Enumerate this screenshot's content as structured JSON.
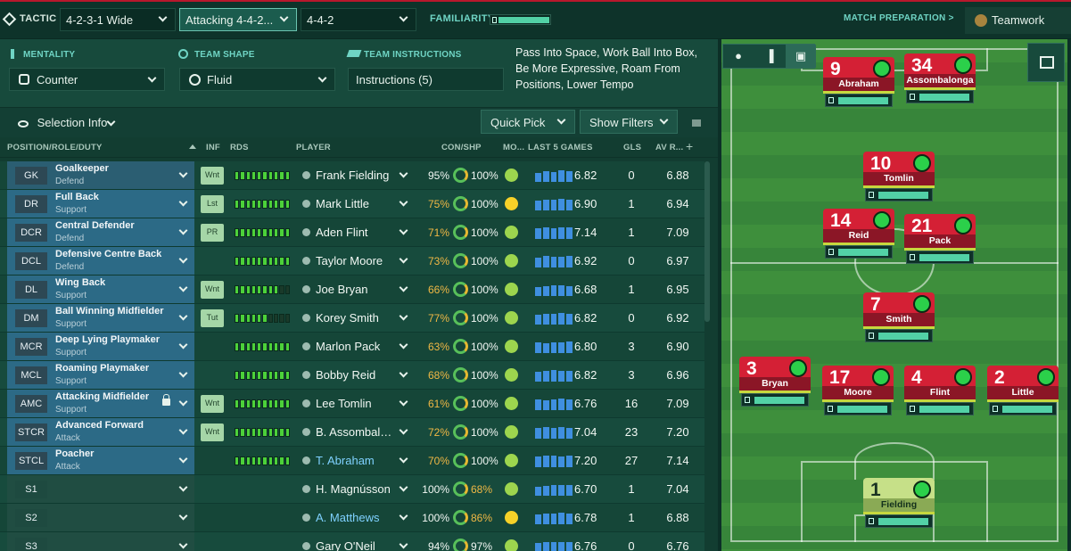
{
  "topbar": {
    "tactic_label": "TACTIC",
    "tactics": [
      "4-2-3-1 Wide",
      "Attacking 4-4-2...",
      "4-4-2"
    ],
    "familiarity_label": "FAMILIARITY",
    "match_prep": "MATCH PREPARATION >",
    "teamwork": "Teamwork"
  },
  "settings": {
    "mentality_label": "MENTALITY",
    "mentality_value": "Counter",
    "shape_label": "TEAM SHAPE",
    "shape_value": "Fluid",
    "instructions_label": "TEAM INSTRUCTIONS",
    "instructions_value": "Instructions (5)",
    "instructions_text": "Pass Into Space, Work Ball Into Box, Be More Expressive, Roam From Positions, Lower Tempo"
  },
  "selection": {
    "info": "Selection Info",
    "quick_pick": "Quick Pick",
    "show_filters": "Show Filters"
  },
  "columns": {
    "position": "POSITION/ROLE/DUTY",
    "inf": "INF",
    "rds": "RDS",
    "player": "PLAYER",
    "conshp": "CON/SHP",
    "mo": "MO...",
    "last5": "LAST 5 GAMES",
    "gls": "GLS",
    "avr": "AV R..."
  },
  "rows": [
    {
      "pos": "GK",
      "role": "Goalkeeper",
      "duty": "Defend",
      "inf": "Wnt",
      "rds": 10,
      "player": "Frank Fielding",
      "con": "95%",
      "shp": "100%",
      "avg": "6.82",
      "gls": "0",
      "avr": "6.88",
      "accent": "g"
    },
    {
      "pos": "DR",
      "role": "Full Back",
      "duty": "Support",
      "inf": "Lst",
      "rds": 10,
      "player": "Mark Little",
      "con": "75%",
      "shp": "100%",
      "avg": "6.90",
      "gls": "1",
      "avr": "6.94",
      "accent": "g"
    },
    {
      "pos": "DCR",
      "role": "Central Defender",
      "duty": "Defend",
      "inf": "PR",
      "rds": 10,
      "player": "Aden Flint",
      "con": "71%",
      "shp": "100%",
      "avg": "7.14",
      "gls": "1",
      "avr": "7.09",
      "accent": "g"
    },
    {
      "pos": "DCL",
      "role": "Defensive Centre Back",
      "duty": "Defend",
      "inf": "",
      "rds": 10,
      "player": "Taylor Moore",
      "con": "73%",
      "shp": "100%",
      "avg": "6.92",
      "gls": "0",
      "avr": "6.97",
      "accent": "g"
    },
    {
      "pos": "DL",
      "role": "Wing Back",
      "duty": "Support",
      "inf": "Wnt",
      "rds": 8,
      "player": "Joe Bryan",
      "con": "66%",
      "shp": "100%",
      "avg": "6.68",
      "gls": "1",
      "avr": "6.95",
      "accent": "g"
    },
    {
      "pos": "DM",
      "role": "Ball Winning Midfielder",
      "duty": "Support",
      "inf": "Tut",
      "rds": 6,
      "player": "Korey Smith",
      "con": "77%",
      "shp": "100%",
      "avg": "6.82",
      "gls": "0",
      "avr": "6.92",
      "accent": "y"
    },
    {
      "pos": "MCR",
      "role": "Deep Lying Playmaker",
      "duty": "Support",
      "inf": "",
      "rds": 10,
      "player": "Marlon Pack",
      "con": "63%",
      "shp": "100%",
      "avg": "6.80",
      "gls": "3",
      "avr": "6.90",
      "accent": "g"
    },
    {
      "pos": "MCL",
      "role": "Roaming Playmaker",
      "duty": "Support",
      "inf": "",
      "rds": 10,
      "player": "Bobby Reid",
      "con": "68%",
      "shp": "100%",
      "avg": "6.82",
      "gls": "3",
      "avr": "6.96",
      "accent": "g"
    },
    {
      "pos": "AMC",
      "role": "Attacking Midfielder",
      "duty": "Support",
      "inf": "Wnt",
      "rds": 10,
      "player": "Lee Tomlin",
      "con": "61%",
      "shp": "100%",
      "avg": "6.76",
      "gls": "16",
      "avr": "7.09",
      "accent": "g",
      "lock": true
    },
    {
      "pos": "STCR",
      "role": "Advanced Forward",
      "duty": "Attack",
      "inf": "Wnt",
      "rds": 10,
      "player": "B. Assombalo...",
      "con": "72%",
      "shp": "100%",
      "avg": "7.04",
      "gls": "23",
      "avr": "7.20",
      "accent": "g"
    },
    {
      "pos": "STCL",
      "role": "Poacher",
      "duty": "Attack",
      "inf": "",
      "rds": 10,
      "player": "T. Abraham",
      "con": "70%",
      "shp": "100%",
      "avg": "7.20",
      "gls": "27",
      "avr": "7.14",
      "accent": "g",
      "link": true
    },
    {
      "pos": "S1",
      "role": "",
      "duty": "",
      "inf": "",
      "rds": 0,
      "player": "H. Magnússon",
      "con": "100%",
      "shp": "68%",
      "avg": "6.70",
      "gls": "1",
      "avr": "7.04",
      "sub": true
    },
    {
      "pos": "S2",
      "role": "",
      "duty": "",
      "inf": "",
      "rds": 0,
      "player": "A. Matthews",
      "con": "100%",
      "shp": "86%",
      "avg": "6.78",
      "gls": "1",
      "avr": "6.88",
      "sub": true,
      "link": true,
      "moy": true
    },
    {
      "pos": "S3",
      "role": "",
      "duty": "",
      "inf": "",
      "rds": 0,
      "player": "Gary O'Neil",
      "con": "94%",
      "shp": "97%",
      "avg": "6.76",
      "gls": "0",
      "avr": "6.76",
      "sub": true
    }
  ],
  "pitch": {
    "players": [
      {
        "num": "9",
        "name": "Abraham"
      },
      {
        "num": "34",
        "name": "Assombalonga"
      },
      {
        "num": "10",
        "name": "Tomlin"
      },
      {
        "num": "14",
        "name": "Reid"
      },
      {
        "num": "21",
        "name": "Pack"
      },
      {
        "num": "7",
        "name": "Smith"
      },
      {
        "num": "3",
        "name": "Bryan"
      },
      {
        "num": "17",
        "name": "Moore"
      },
      {
        "num": "4",
        "name": "Flint"
      },
      {
        "num": "2",
        "name": "Little"
      },
      {
        "num": "1",
        "name": "Fielding"
      }
    ]
  },
  "colors": {
    "accent": "#52d1a6",
    "card_red": "#d42035",
    "gk_card": "#c6e088"
  }
}
